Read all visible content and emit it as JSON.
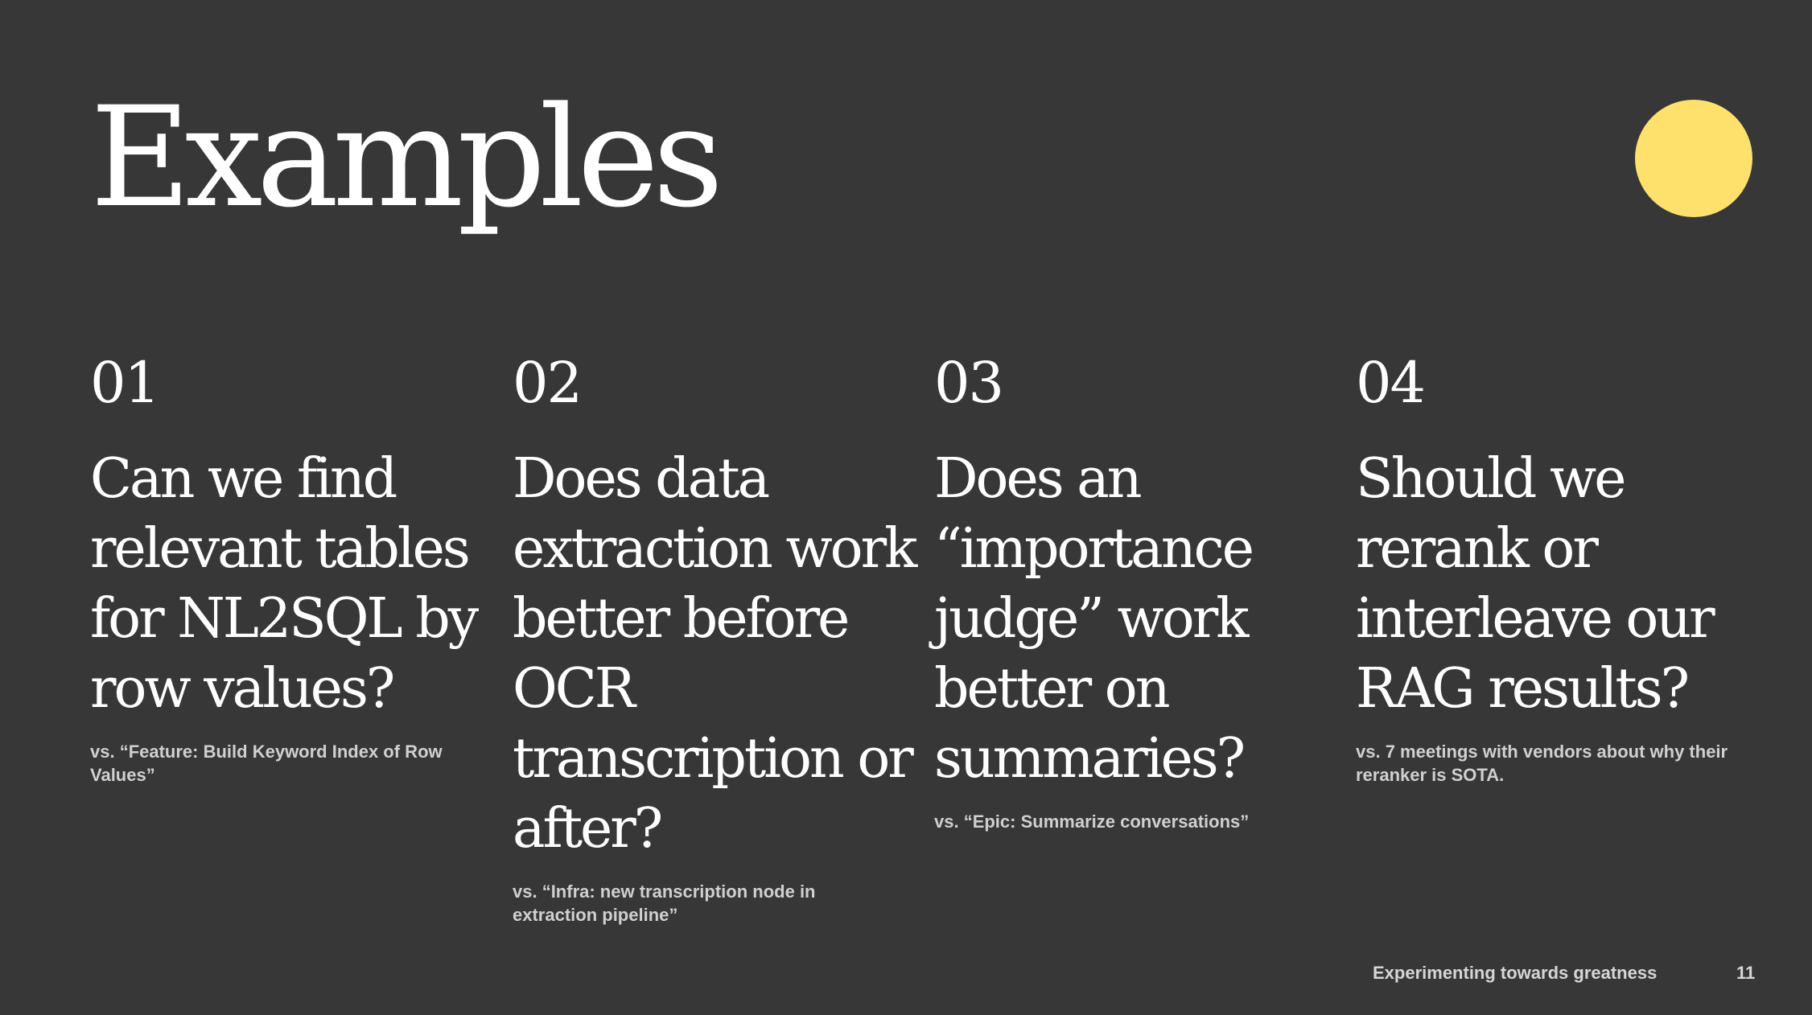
{
  "slide": {
    "title": "Examples",
    "accent_color": "#fde16c",
    "background_color": "#373737"
  },
  "items": [
    {
      "number": "01",
      "question": "Can we find relevant tables for NL2SQL by row values?",
      "note": "vs. “Feature: Build Keyword Index of Row Values”"
    },
    {
      "number": "02",
      "question": "Does data extraction work better before OCR transcription or after?",
      "note": "vs. “Infra: new transcription node in extraction pipeline”"
    },
    {
      "number": "03",
      "question": "Does an “importance judge” work better on summaries?",
      "note": "vs. “Epic: Summarize conversations”"
    },
    {
      "number": "04",
      "question": "Should we rerank or interleave our RAG results?",
      "note": "vs. 7 meetings with vendors about why their reranker is SOTA."
    }
  ],
  "footer": {
    "text": "Experimenting towards greatness",
    "page_number": "11"
  }
}
